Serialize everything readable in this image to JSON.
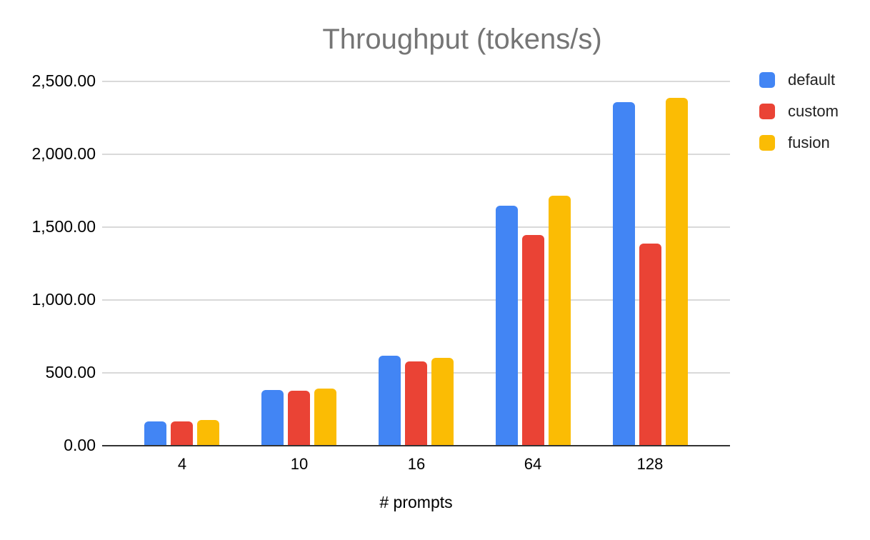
{
  "chart_data": {
    "type": "bar",
    "title": "Throughput (tokens/s)",
    "xlabel": "# prompts",
    "ylabel": "",
    "categories": [
      "4",
      "10",
      "16",
      "64",
      "128"
    ],
    "series": [
      {
        "name": "default",
        "color": "#4285F4",
        "values": [
          160,
          375,
          613,
          1640,
          2354
        ]
      },
      {
        "name": "custom",
        "color": "#EA4335",
        "values": [
          163,
          373,
          572,
          1443,
          1384
        ]
      },
      {
        "name": "fusion",
        "color": "#FBBC04",
        "values": [
          172,
          388,
          600,
          1713,
          2383
        ]
      }
    ],
    "ylim": [
      0,
      2500
    ],
    "yticks": [
      {
        "value": 0,
        "label": "0.00"
      },
      {
        "value": 500,
        "label": "500.00"
      },
      {
        "value": 1000,
        "label": "1,000.00"
      },
      {
        "value": 1500,
        "label": "1,500.00"
      },
      {
        "value": 2000,
        "label": "2,000.00"
      },
      {
        "value": 2500,
        "label": "2,500.00"
      }
    ],
    "grid": true,
    "legend_position": "right"
  },
  "colors": {
    "title_text": "#757575",
    "axis_text": "#000000",
    "legend_text": "#212121",
    "gridline": "#d9d9d9",
    "axis_line": "#333333",
    "background": "#ffffff"
  }
}
